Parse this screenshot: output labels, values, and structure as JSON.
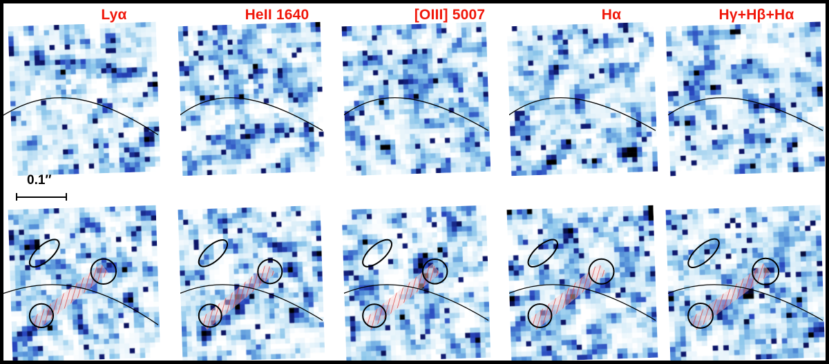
{
  "figure": {
    "panel_labels": [
      "Lyα",
      "HeII 1640",
      "[OIII] 5007",
      "Hα",
      "Hγ+Hβ+Hα"
    ],
    "label_color": "#f0170a",
    "scale_bar": {
      "label": "0.1″"
    },
    "grid": {
      "rows": 2,
      "cols": 5
    },
    "colormap_stops": [
      "#ffffff",
      "#d6ecf8",
      "#8cc6eb",
      "#508cd7",
      "#2846be",
      "#0c1464",
      "#000000"
    ],
    "annotations": {
      "critical_curve_color": "#000000",
      "aperture_color": "#000000",
      "slit_hatch_color": "#dd4444",
      "slit_fill_color": "#f8d0d0"
    }
  }
}
